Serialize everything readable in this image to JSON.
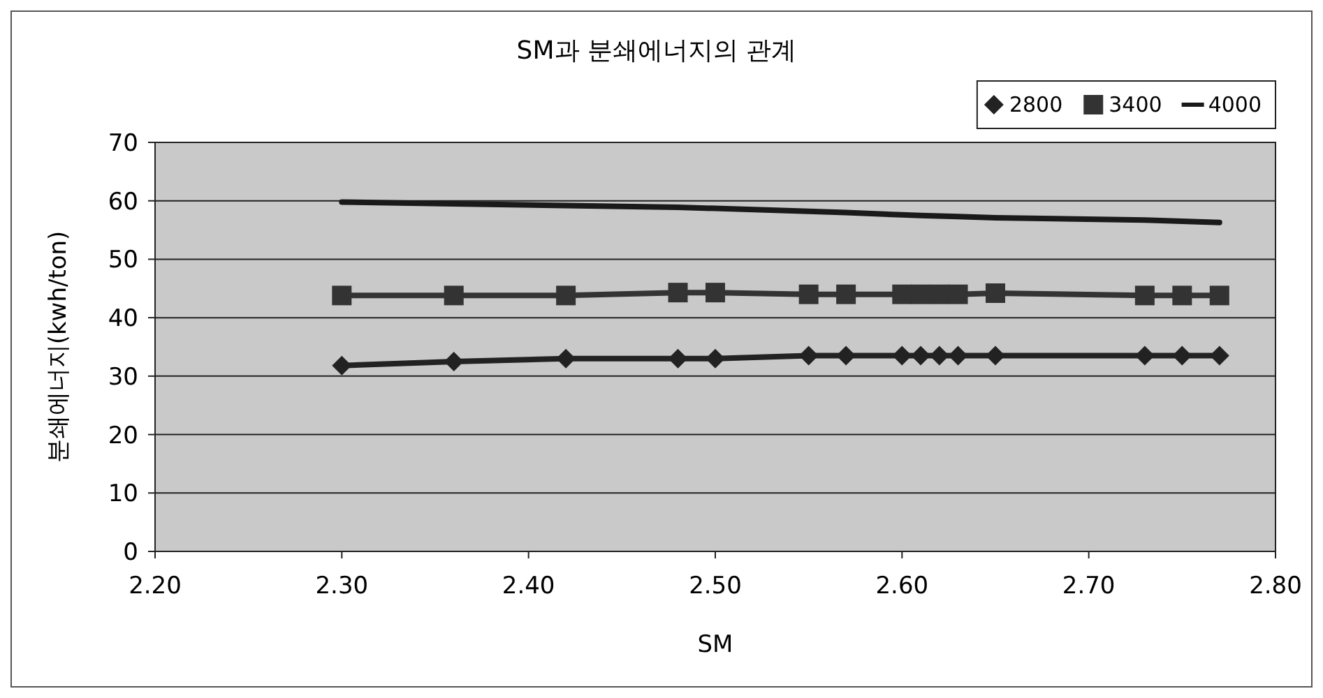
{
  "chart_data": {
    "type": "line",
    "title": "SM과 분쇄에너지의 관계",
    "xlabel": "SM",
    "ylabel": "분쇄에너지(kwh/ton)",
    "x": [
      2.3,
      2.36,
      2.42,
      2.48,
      2.5,
      2.55,
      2.57,
      2.6,
      2.61,
      2.62,
      2.63,
      2.65,
      2.73,
      2.75,
      2.77
    ],
    "series": [
      {
        "name": "2800",
        "color": "#222222",
        "marker": "diamond",
        "values": [
          31.8,
          32.5,
          33,
          33,
          33,
          33.5,
          33.5,
          33.5,
          33.5,
          33.5,
          33.5,
          33.5,
          33.5,
          33.5,
          33.5
        ]
      },
      {
        "name": "3400",
        "color": "#333333",
        "marker": "square",
        "values": [
          43.8,
          43.8,
          43.8,
          44.3,
          44.3,
          44,
          44,
          44,
          44,
          44,
          44,
          44.2,
          43.8,
          43.8,
          43.8
        ]
      },
      {
        "name": "4000",
        "color": "#1a1a1a",
        "marker": "none",
        "values": [
          59.8,
          59.5,
          59.2,
          58.9,
          58.7,
          58.2,
          58,
          57.6,
          57.5,
          57.4,
          57.3,
          57.1,
          56.7,
          56.5,
          56.3
        ]
      }
    ],
    "xlim": [
      2.2,
      2.8
    ],
    "xticks": [
      {
        "value": 2.2,
        "label": "2.20"
      },
      {
        "value": 2.3,
        "label": "2.30"
      },
      {
        "value": 2.4,
        "label": "2.40"
      },
      {
        "value": 2.5,
        "label": "2.50"
      },
      {
        "value": 2.6,
        "label": "2.60"
      },
      {
        "value": 2.7,
        "label": "2.70"
      },
      {
        "value": 2.8,
        "label": "2.80"
      }
    ],
    "ylim": [
      0,
      70
    ],
    "yticks": [
      0,
      10,
      20,
      30,
      40,
      50,
      60,
      70
    ],
    "grid": "y",
    "legend": "top right"
  }
}
